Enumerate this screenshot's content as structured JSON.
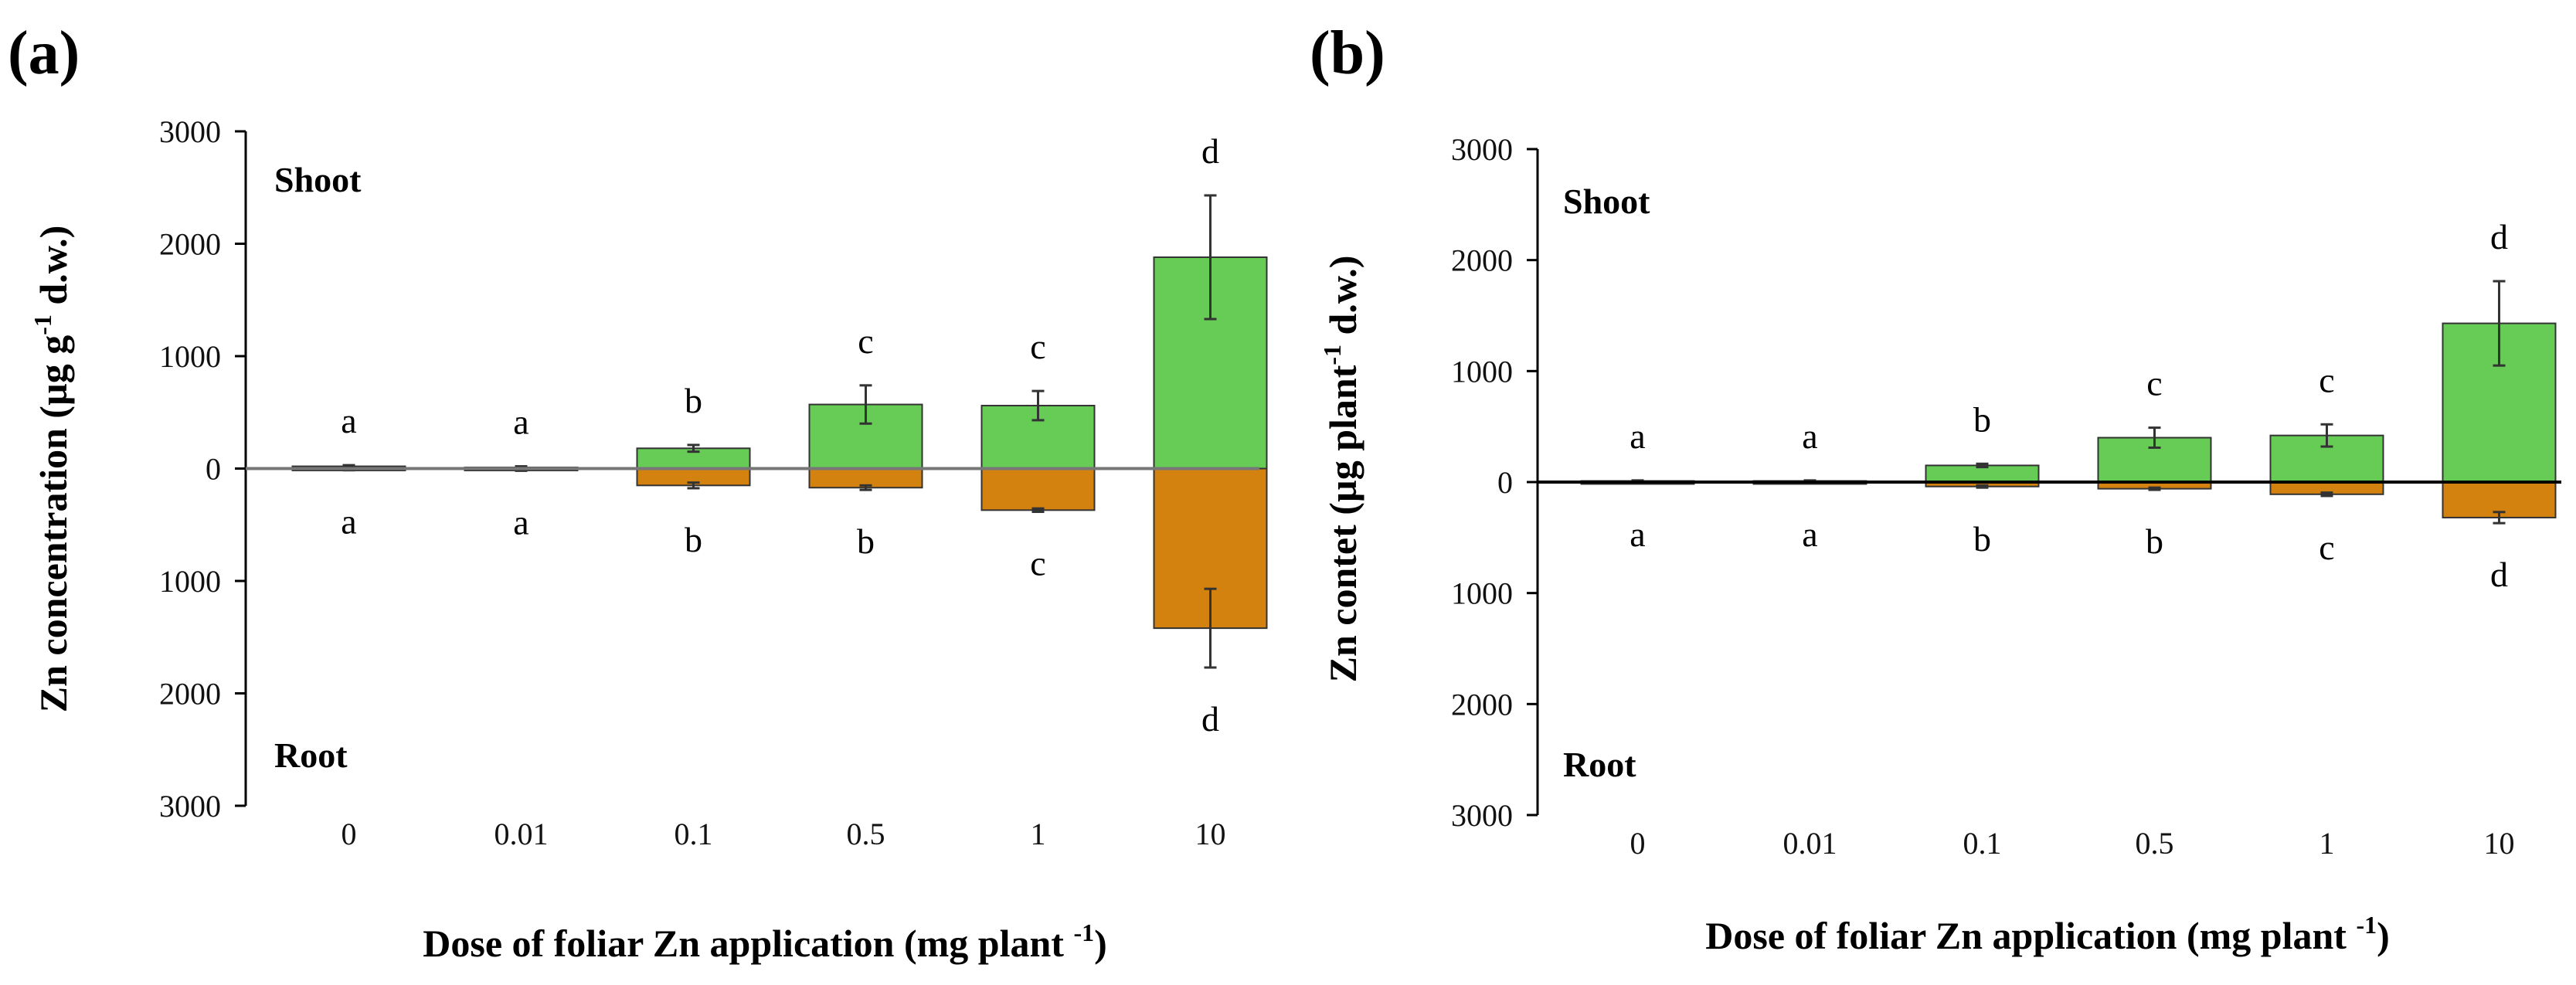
{
  "chart_data": [
    {
      "type": "bar",
      "panel_label": "(a)",
      "categories": [
        "0",
        "0.01",
        "0.1",
        "0.5",
        "1",
        "10"
      ],
      "xlabel_main": "Dose of foliar Zn application (mg plant",
      "xlabel_sup": "-1",
      "xlabel_end": ")",
      "ylabel_main": "Zn concentration (µg g",
      "ylabel_sup": "-1",
      "ylabel_end": " d.w.)",
      "yticks": [
        "3000",
        "2000",
        "1000",
        "0",
        "1000",
        "2000",
        "3000"
      ],
      "ylim": [
        -3000,
        3000
      ],
      "top_label": "Shoot",
      "bottom_label": "Root",
      "zero_line_color": "#777777",
      "series": [
        {
          "name": "Shoot",
          "color": "#66cc55",
          "values": [
            20,
            10,
            180,
            570,
            560,
            1880
          ],
          "errors": [
            10,
            10,
            30,
            170,
            130,
            550
          ],
          "letters": [
            "a",
            "a",
            "b",
            "c",
            "c",
            "d"
          ]
        },
        {
          "name": "Root",
          "color": "#d4820f",
          "values": [
            -10,
            -15,
            -150,
            -170,
            -370,
            -1420
          ],
          "errors": [
            5,
            5,
            25,
            20,
            15,
            350
          ],
          "letters": [
            "a",
            "a",
            "b",
            "b",
            "c",
            "d"
          ]
        }
      ]
    },
    {
      "type": "bar",
      "panel_label": "(b)",
      "categories": [
        "0",
        "0.01",
        "0.1",
        "0.5",
        "1",
        "10"
      ],
      "xlabel_main": "Dose of foliar Zn application (mg plant",
      "xlabel_sup": "-1",
      "xlabel_end": ")",
      "ylabel_main": "Zn contet (µg plant",
      "ylabel_sup": "-1",
      "ylabel_end": " d.w.)",
      "yticks": [
        "3000",
        "2000",
        "1000",
        "0",
        "1000",
        "2000",
        "3000"
      ],
      "ylim": [
        -3000,
        3000
      ],
      "top_label": "Shoot",
      "bottom_label": "Root",
      "zero_line_color": "#000000",
      "series": [
        {
          "name": "Shoot",
          "color": "#66cc55",
          "values": [
            10,
            10,
            150,
            400,
            420,
            1430
          ],
          "errors": [
            5,
            5,
            15,
            90,
            100,
            380
          ],
          "letters": [
            "a",
            "a",
            "b",
            "c",
            "c",
            "d"
          ]
        },
        {
          "name": "Root",
          "color": "#d4820f",
          "values": [
            -5,
            -5,
            -40,
            -60,
            -110,
            -320
          ],
          "errors": [
            3,
            3,
            10,
            10,
            15,
            50
          ],
          "letters": [
            "a",
            "a",
            "b",
            "b",
            "c",
            "d"
          ]
        }
      ]
    }
  ]
}
